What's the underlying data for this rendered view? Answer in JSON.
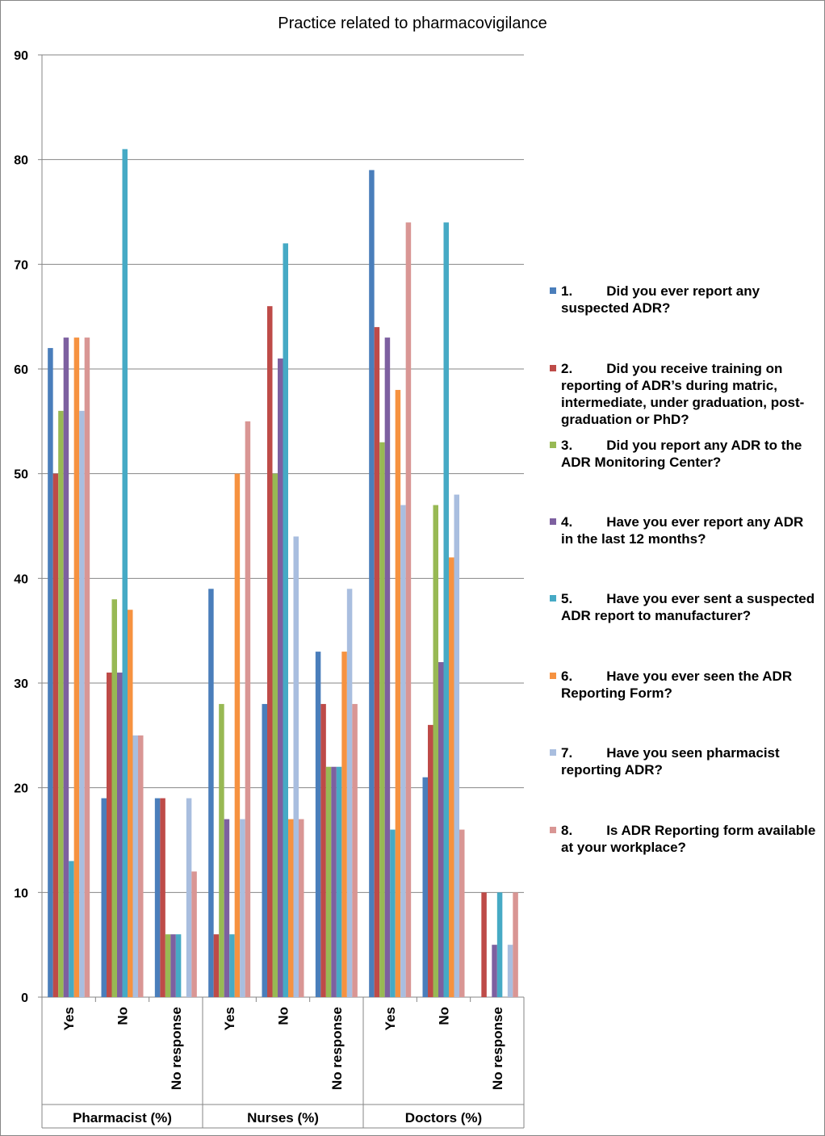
{
  "chart_data": {
    "type": "bar",
    "title": "Practice related to pharmacovigilance",
    "ylim": [
      0,
      90
    ],
    "yticks": [
      0,
      10,
      20,
      30,
      40,
      50,
      60,
      70,
      80,
      90
    ],
    "groups": [
      {
        "label": "Pharmacist (%)",
        "categories": [
          "Yes",
          "No",
          "No response"
        ]
      },
      {
        "label": "Nurses (%)",
        "categories": [
          "Yes",
          "No",
          "No response"
        ]
      },
      {
        "label": "Doctors (%)",
        "categories": [
          "Yes",
          "No",
          "No response"
        ]
      }
    ],
    "series": [
      {
        "name": "1.\tDid you ever report any suspected ADR?",
        "color": "#4A7EBB",
        "values": [
          62,
          19,
          19,
          39,
          28,
          33,
          79,
          21,
          0
        ]
      },
      {
        "name": "2.\tDid you receive training on reporting of ADR’s during matric, intermediate, under graduation, post-graduation or PhD?",
        "color": "#BE4B48",
        "values": [
          50,
          31,
          19,
          6,
          66,
          28,
          64,
          26,
          10
        ]
      },
      {
        "name": "3.\tDid you report any ADR to the ADR Monitoring Center?",
        "color": "#98B954",
        "values": [
          56,
          38,
          6,
          28,
          50,
          22,
          53,
          47,
          0
        ]
      },
      {
        "name": "4.\tHave you ever report any ADR in the last 12 months?",
        "color": "#7D60A0",
        "values": [
          63,
          31,
          6,
          17,
          61,
          22,
          63,
          32,
          5
        ]
      },
      {
        "name": "5.\tHave you ever sent a suspected ADR report to manufacturer?",
        "color": "#46AAC5",
        "values": [
          13,
          81,
          6,
          6,
          72,
          22,
          16,
          74,
          10
        ]
      },
      {
        "name": "6.\tHave you ever seen the ADR Reporting Form?",
        "color": "#F69240",
        "values": [
          63,
          37,
          0,
          50,
          17,
          33,
          58,
          42,
          0
        ]
      },
      {
        "name": "7.\tHave you seen pharmacist reporting ADR?",
        "color": "#A9BEDF",
        "values": [
          56,
          25,
          19,
          17,
          44,
          39,
          47,
          48,
          5
        ]
      },
      {
        "name": "8.\tIs ADR Reporting form available at your workplace?",
        "color": "#D99694",
        "values": [
          63,
          25,
          12,
          55,
          17,
          28,
          74,
          16,
          10
        ]
      }
    ],
    "legend_position": "right"
  },
  "legend": [
    {
      "num": "1.",
      "text": "Did you ever report any suspected ADR?"
    },
    {
      "num": "2.",
      "text": "Did you receive training on reporting of ADR’s during matric, intermediate, under graduation, post-graduation or PhD?"
    },
    {
      "num": "3.",
      "text": "Did you report any ADR to the ADR Monitoring Center?"
    },
    {
      "num": "4.",
      "text": "Have you ever report any ADR in the last 12 months?"
    },
    {
      "num": "5.",
      "text": "Have you ever sent a suspected ADR report to manufacturer?"
    },
    {
      "num": "6.",
      "text": "Have you ever seen the ADR Reporting Form?"
    },
    {
      "num": "7.",
      "text": "Have you seen pharmacist reporting ADR?"
    },
    {
      "num": "8.",
      "text": "Is ADR Reporting form available at your workplace?"
    }
  ]
}
